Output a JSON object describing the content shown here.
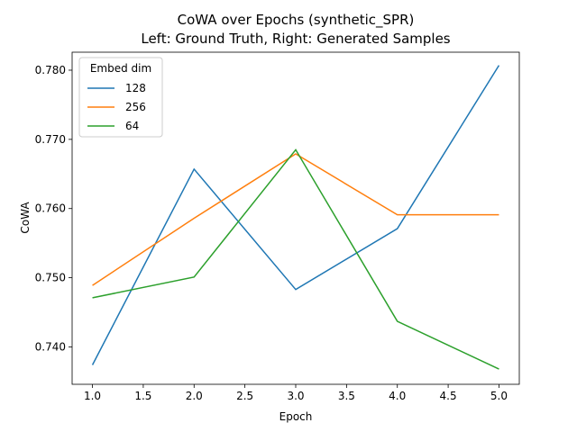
{
  "chart_data": {
    "type": "line",
    "title": "CoWA over Epochs (synthetic_SPR)",
    "subtitle": "Left: Ground Truth, Right: Generated Samples",
    "xlabel": "Epoch",
    "ylabel": "CoWA",
    "xlim": [
      0.8,
      5.2
    ],
    "ylim": [
      0.7346,
      0.7826
    ],
    "x_ticks": [
      "1.0",
      "1.5",
      "2.0",
      "2.5",
      "3.0",
      "3.5",
      "4.0",
      "4.5",
      "5.0"
    ],
    "y_ticks": [
      "0.740",
      "0.750",
      "0.760",
      "0.770",
      "0.780"
    ],
    "grid": false,
    "legend": {
      "title": "Embed dim",
      "position": "top-left"
    },
    "x": [
      1,
      2,
      3,
      4,
      5
    ],
    "series": [
      {
        "name": "128",
        "color": "#1f77b4",
        "values": [
          0.7374,
          0.7657,
          0.7483,
          0.7571,
          0.7807
        ]
      },
      {
        "name": "256",
        "color": "#ff7f0e",
        "values": [
          0.7489,
          0.7586,
          0.7679,
          0.7591,
          0.7591
        ]
      },
      {
        "name": "64",
        "color": "#2ca02c",
        "values": [
          0.7471,
          0.7501,
          0.7685,
          0.7437,
          0.7368
        ]
      }
    ]
  }
}
